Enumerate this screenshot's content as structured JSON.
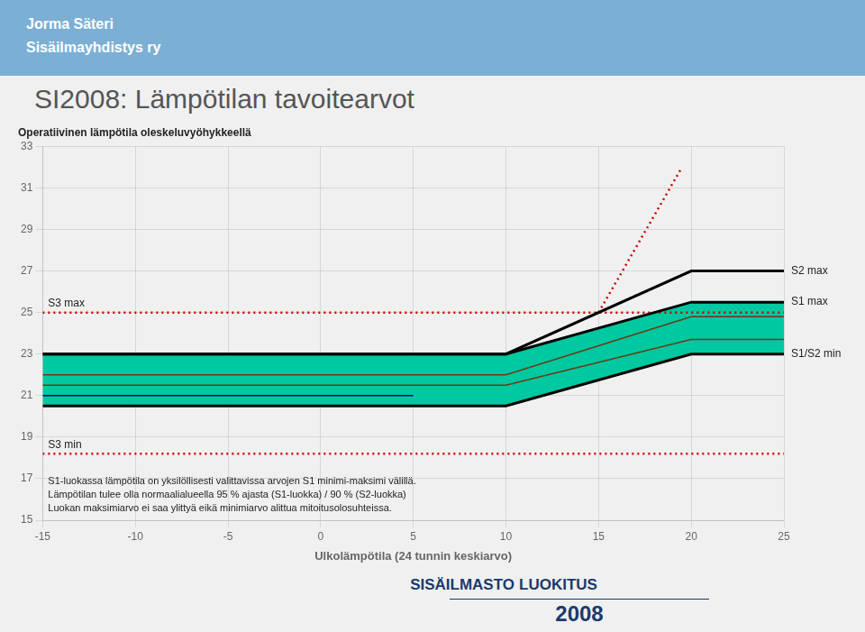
{
  "chart_data": {
    "type": "line",
    "header": [
      "Jorma Säteri",
      "Sisäilmayhdistys ry"
    ],
    "title": "SI2008: Lämpötilan tavoitearvot",
    "subtitle": "Operatiivinen lämpötila oleskeluvyöhykkeellä",
    "xlabel": "Ulkolämpötila (24 tunnin keskiarvo)",
    "xlim": [
      -15,
      25
    ],
    "xticks": [
      -15,
      -10,
      -5,
      0,
      5,
      10,
      15,
      20,
      25
    ],
    "ylim": [
      15,
      33
    ],
    "yticks": [
      15,
      17,
      19,
      21,
      23,
      25,
      27,
      29,
      31,
      33
    ],
    "grid": true,
    "series": [
      {
        "name": "S3 max",
        "x": [
          -15,
          25
        ],
        "values": [
          25,
          25
        ],
        "color": "#cc0000",
        "line_style": "dotted"
      },
      {
        "name": "S3 min",
        "x": [
          -15,
          25
        ],
        "values": [
          18.2,
          18.2
        ],
        "color": "#cc0000",
        "line_style": "dotted"
      },
      {
        "x": [
          15,
          19.5
        ],
        "values": [
          25,
          32
        ],
        "color": "#cc0000",
        "line_style": "dotted"
      },
      {
        "type": "band",
        "x": [
          -15,
          10,
          20,
          25
        ],
        "values": [
          20.5,
          20.5,
          23,
          23
        ],
        "upper": [
          23,
          23,
          25.5,
          25.5
        ],
        "color": "#00c8a0"
      },
      {
        "x": [
          -15,
          10,
          20,
          25
        ],
        "values": [
          22.0,
          22.0,
          24.8,
          24.8
        ],
        "color": "#6b3a10",
        "line_style": "solid"
      },
      {
        "x": [
          -15,
          10,
          20,
          25
        ],
        "values": [
          21.5,
          21.5,
          23.7,
          23.7
        ],
        "color": "#6b3a10",
        "line_style": "solid"
      },
      {
        "x": [
          -15,
          5
        ],
        "values": [
          21.0,
          21.0
        ],
        "color": "#000080",
        "line_style": "solid"
      },
      {
        "name": "S2 max",
        "x": [
          -15,
          10,
          20,
          25
        ],
        "values": [
          23,
          23,
          27,
          27
        ],
        "color": "#000000",
        "line_style": "solid"
      },
      {
        "name": "S1 max",
        "x": [
          -15,
          10,
          20,
          25
        ],
        "values": [
          23,
          23,
          25.5,
          25.5
        ],
        "color": "#000000",
        "line_style": "solid"
      },
      {
        "name": "S1/S2 min",
        "x": [
          -15,
          10,
          20,
          25
        ],
        "values": [
          20.5,
          20.5,
          23,
          23
        ],
        "color": "#000000",
        "line_style": "solid"
      }
    ],
    "annotations": [
      "S1-luokassa lämpötila on yksilöllisesti valittavissa arvojen S1 minimi-maksimi välillä.",
      "Lämpötilan tulee olla normaalialueella 95 % ajasta (S1-luokka) / 90 % (S2-luokka)",
      "Luokan maksimiarvo ei saa ylittyä eikä minimiarvo alittua mitoitusolosuhteissa."
    ],
    "footer": [
      "SISÄILMASTO",
      "LUOKITUS",
      "2008"
    ]
  }
}
